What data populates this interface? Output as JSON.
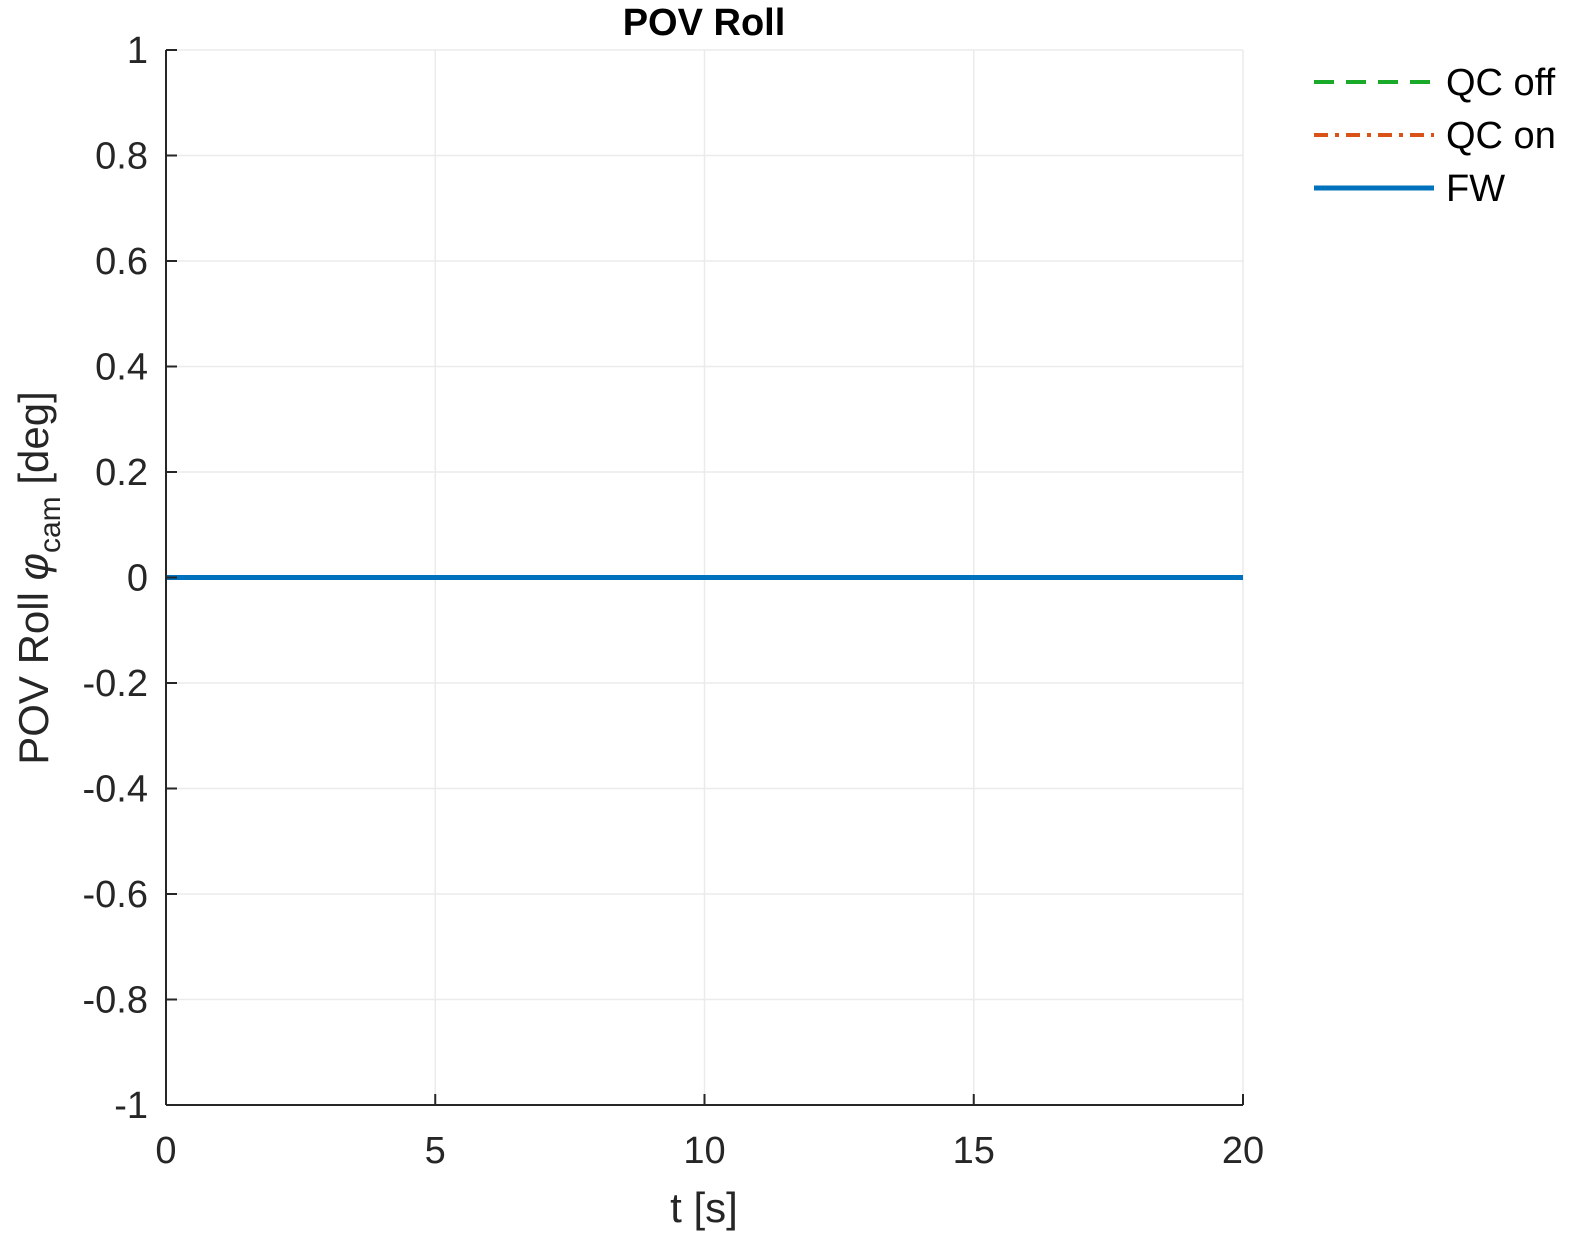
{
  "chart_data": {
    "type": "line",
    "title": "POV Roll",
    "xlabel": "t [s]",
    "ylabel": {
      "prefix": "POV Roll ",
      "symbol": "φ",
      "subscript": "cam",
      "suffix": " [deg]"
    },
    "xlim": [
      0,
      20
    ],
    "ylim": [
      -1,
      1
    ],
    "xticks": [
      0,
      5,
      10,
      15,
      20
    ],
    "xtick_labels": [
      "0",
      "5",
      "10",
      "15",
      "20"
    ],
    "yticks": [
      1,
      0.8,
      0.6,
      0.4,
      0.2,
      0,
      -0.2,
      -0.4,
      -0.6,
      -0.8,
      -1
    ],
    "ytick_labels": [
      "1",
      "0.8",
      "0.6",
      "0.4",
      "0.2",
      "0",
      "-0.2",
      "-0.4",
      "-0.6",
      "-0.8",
      "-1"
    ],
    "grid": true,
    "legend_position": "outside-top-right",
    "series": [
      {
        "name": "QC off",
        "color": "#1aaa2a",
        "style": "dashed",
        "x": [
          0,
          20
        ],
        "y": [
          0,
          0
        ]
      },
      {
        "name": "QC on",
        "color": "#d95319",
        "style": "dashdot",
        "x": [
          0,
          20
        ],
        "y": [
          0,
          0
        ]
      },
      {
        "name": "FW",
        "color": "#0072bd",
        "style": "solid",
        "x": [
          0,
          20
        ],
        "y": [
          0,
          0
        ]
      }
    ]
  }
}
